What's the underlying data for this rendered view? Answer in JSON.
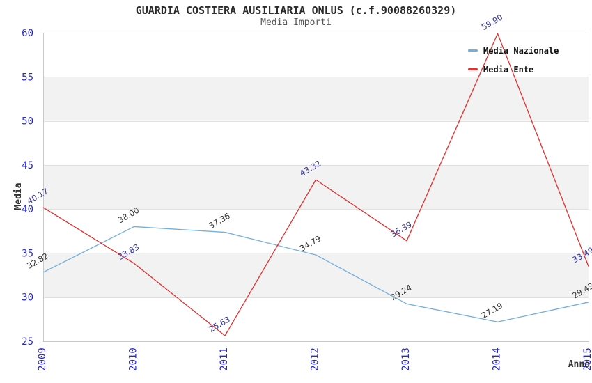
{
  "chart_data": {
    "type": "line",
    "title": "GUARDIA COSTIERA AUSILIARIA ONLUS (c.f.90088260329)",
    "subtitle": "Media Importi",
    "xlabel": "Anno",
    "ylabel": "Media",
    "x": [
      2009,
      2010,
      2011,
      2012,
      2013,
      2014,
      2015
    ],
    "yticks": [
      25,
      30,
      35,
      40,
      45,
      50,
      55,
      60
    ],
    "ylim": [
      25,
      60
    ],
    "grid": true,
    "plot_bands": "alternating light gray horizontal bands between 30-35, 40-45, 50-55",
    "legend_position": "top-right",
    "data_label_rotation_deg": -30,
    "x_tick_rotation_deg": -90,
    "series": [
      {
        "name": "Media Nazionale",
        "color": "#74aede",
        "label_color": "#333333",
        "values": [
          32.82,
          38.0,
          37.36,
          34.79,
          29.24,
          27.19,
          29.43
        ]
      },
      {
        "name": "Media Ente",
        "color": "#e03030",
        "label_color": "#36369a",
        "values": [
          40.17,
          33.83,
          25.63,
          43.32,
          36.39,
          59.9,
          33.49
        ]
      }
    ],
    "colors": {
      "tick_labels": "#2727cf",
      "gridline": "#e0e0e0",
      "band": "#f2f2f2",
      "plot_border": "#c9c9c9",
      "axis_title": "#333333",
      "background": "#ffffff"
    }
  }
}
